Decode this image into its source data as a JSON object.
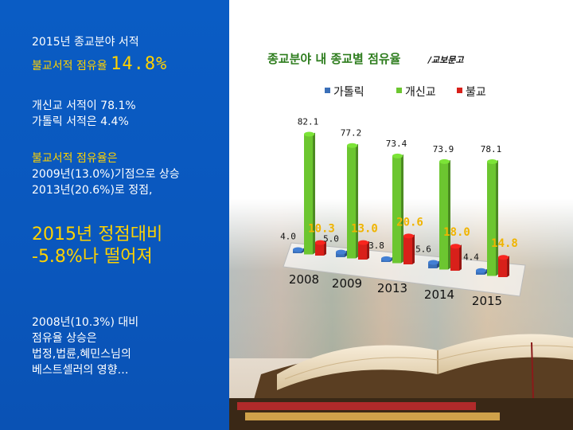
{
  "left": {
    "line1": "2015년 종교분야 서적",
    "line2_prefix": "불교서적 점유율",
    "line2_value": "14.8%",
    "line3": "개신교 서적이 78.1%",
    "line4": "가톨릭 서적은 4.4%",
    "line5": "불교서적 점유율은",
    "line6": "2009년(13.0%)기점으로 상승",
    "line7": "2013년(20.6%)로 정점,",
    "line8": "2015년 정점대비",
    "line9": "-5.8%나 떨어져",
    "line10": "2008년(10.3%) 대비",
    "line11": "점유율 상승은",
    "line12": "법정,법륜,혜민스님의",
    "line13": "베스트셀러의 영향…"
  },
  "colors": {
    "panel_blue": "#0a5cc4",
    "highlight_yellow": "#ffd200",
    "title_green": "#2e7d1e",
    "catholic_blue": "#3a6fb8",
    "protestant_green": "#6cc630",
    "buddhist_red": "#d8201a"
  },
  "chart_data": {
    "type": "bar",
    "title": "종교분야 내 종교별 점유율",
    "subtitle": "/교보문고",
    "categories": [
      "2008",
      "2009",
      "2013",
      "2014",
      "2015"
    ],
    "series": [
      {
        "name": "가톨릭",
        "color": "#3a6fb8",
        "values": [
          4.0,
          5.0,
          3.8,
          5.6,
          4.4
        ],
        "labels": [
          "4.0",
          "5.0",
          "3.8",
          "5.6",
          "4.4"
        ]
      },
      {
        "name": "개신교",
        "color": "#6cc630",
        "values": [
          82.1,
          77.2,
          73.4,
          73.9,
          78.1
        ],
        "labels": [
          "82.1",
          "77.2",
          "73.4",
          "73.9",
          "78.1"
        ]
      },
      {
        "name": "불교",
        "color": "#d8201a",
        "values": [
          10.3,
          13.0,
          20.6,
          18.0,
          14.8
        ],
        "labels": [
          "10.3",
          "13.0",
          "20.6",
          "18.0",
          "14.8"
        ]
      }
    ],
    "legend_position": "top",
    "grid": false
  }
}
